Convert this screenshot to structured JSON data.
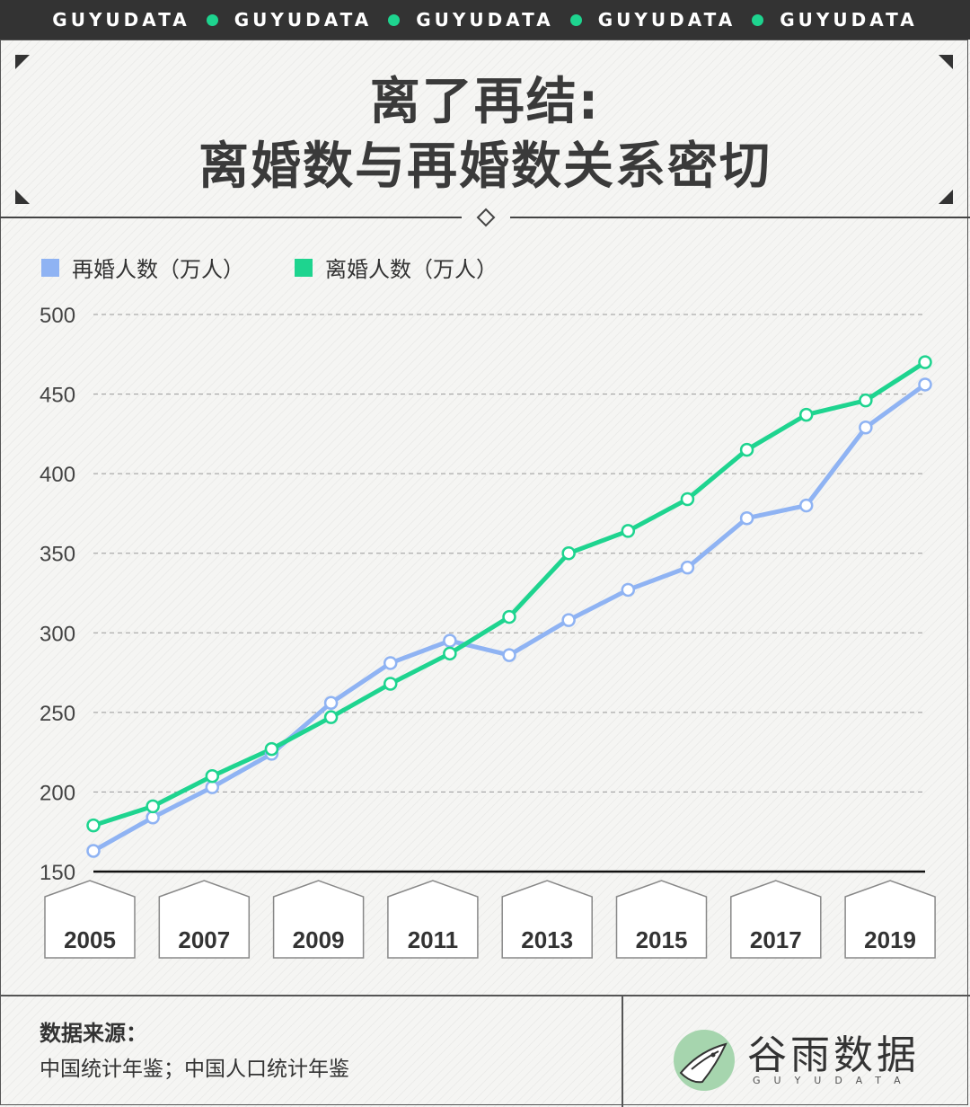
{
  "banner": {
    "words": [
      "GUYUDATA",
      "GUYUDATA",
      "GUYUDATA",
      "GUYUDATA",
      "GUYUDATA"
    ],
    "dot_color": "#1ed48f"
  },
  "title": {
    "line1": "离了再结:",
    "line2": "离婚数与再婚数关系密切"
  },
  "legend": [
    {
      "name": "再婚人数（万人）",
      "color": "#8fb3f3"
    },
    {
      "name": "离婚人数（万人）",
      "color": "#1ed48f"
    }
  ],
  "chart_data": {
    "type": "line",
    "x": [
      2005,
      2006,
      2007,
      2008,
      2009,
      2010,
      2011,
      2012,
      2013,
      2014,
      2015,
      2016,
      2017,
      2018,
      2019
    ],
    "x_tick_labels": [
      "2005",
      "2007",
      "2009",
      "2011",
      "2013",
      "2015",
      "2017",
      "2019"
    ],
    "series": [
      {
        "name": "再婚人数（万人）",
        "color": "#8fb3f3",
        "values": [
          163,
          184,
          203,
          224,
          256,
          281,
          295,
          286,
          308,
          327,
          341,
          372,
          380,
          429,
          456
        ]
      },
      {
        "name": "离婚人数（万人）",
        "color": "#1ed48f",
        "values": [
          179,
          191,
          210,
          227,
          247,
          268,
          287,
          310,
          350,
          364,
          384,
          415,
          437,
          446,
          470
        ]
      }
    ],
    "ylim": [
      150,
      500
    ],
    "y_ticks": [
      "500",
      "450",
      "400",
      "350",
      "300",
      "250",
      "200",
      "150"
    ],
    "y_tick_values": [
      500,
      450,
      400,
      350,
      300,
      250,
      200,
      150
    ],
    "grid": true,
    "legend_position": "top-left"
  },
  "source": {
    "label": "数据来源：",
    "value": "中国统计年鉴；中国人口统计年鉴"
  },
  "logo": {
    "name_cn": "谷雨数据",
    "name_en": "GUYUDATA"
  }
}
